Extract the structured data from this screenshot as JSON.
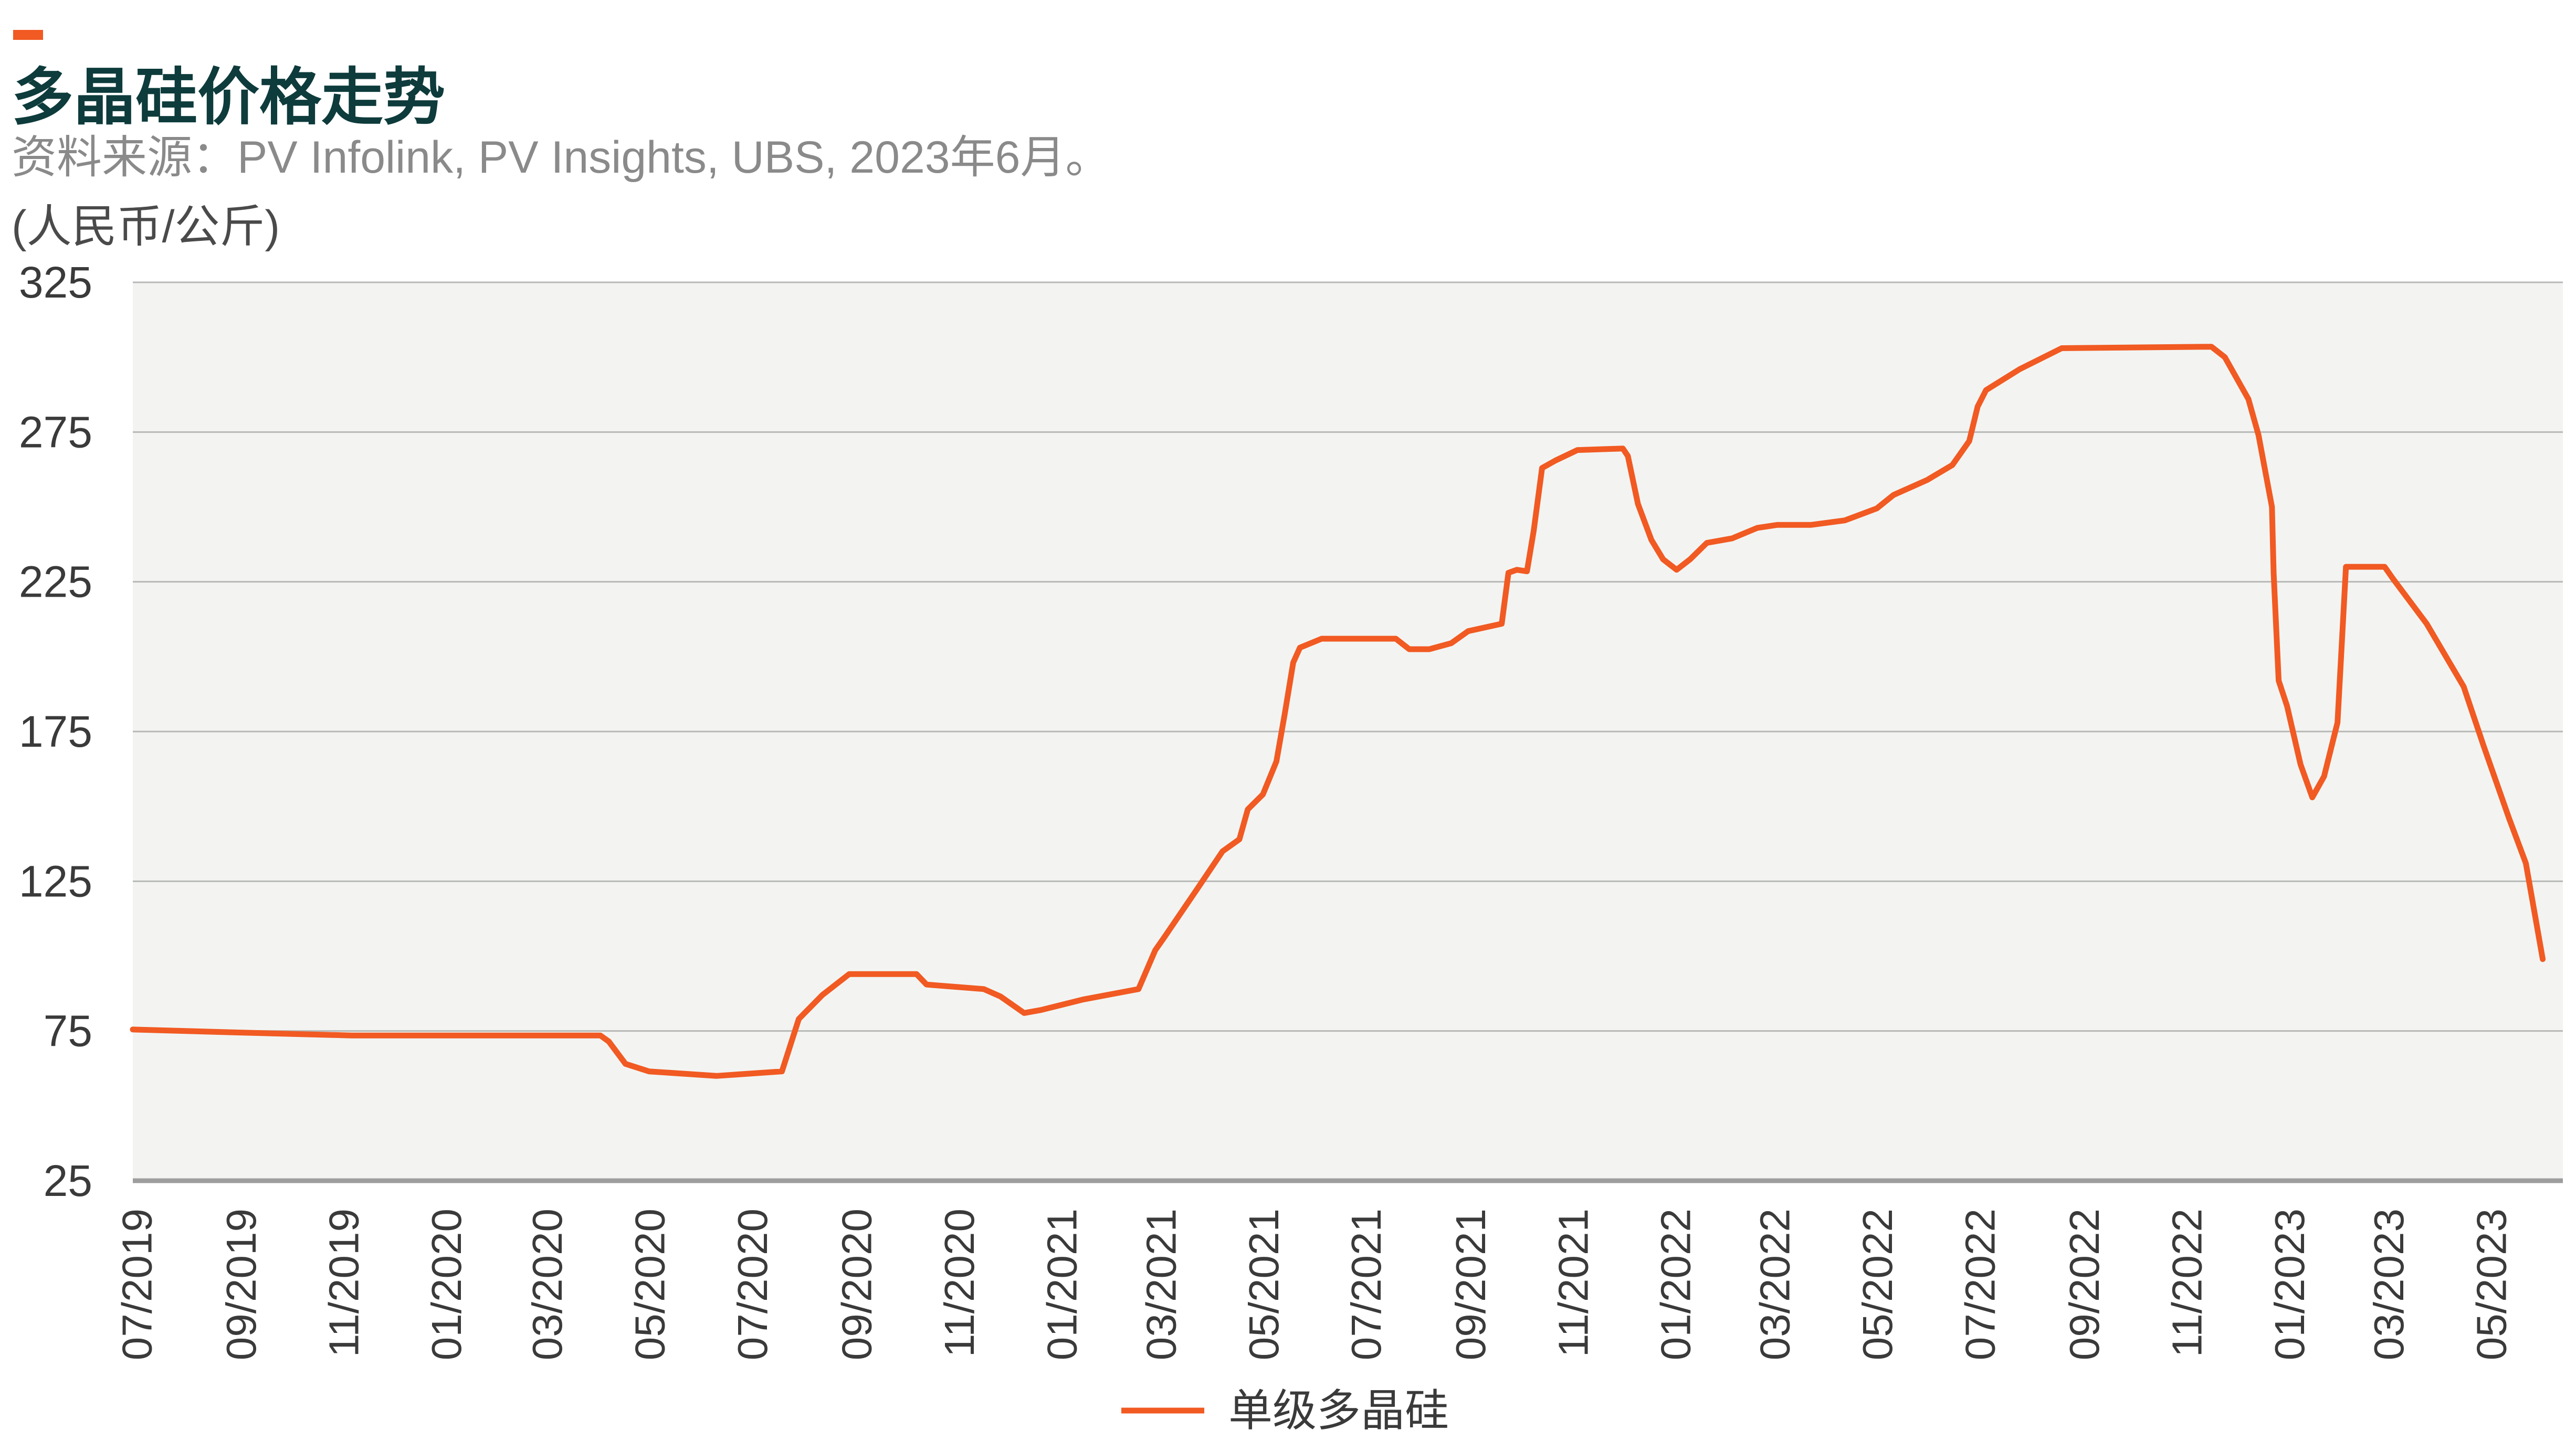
{
  "colors": {
    "line": "#f15a22",
    "accent_bar": "#f15a22",
    "title": "#0e3b3b",
    "subtitle": "#8a8a8a",
    "unit_label": "#4a4a4a",
    "plot_background": "#f3f4f2",
    "gridline": "#b7b9b7",
    "baseline": "#9d9d9d",
    "tick_label": "#3a3a3a"
  },
  "chart_data": {
    "type": "line",
    "title": "多晶硅价格走势",
    "subtitle": "资料来源：PV Infolink, PV Insights, UBS, 2023年6月。",
    "ylabel": "(人民币/公斤)",
    "xlabel": "",
    "ylim": [
      25,
      325
    ],
    "yticks": [
      325,
      275,
      225,
      175,
      125,
      75,
      25
    ],
    "xlim": [
      "2019-07-01",
      "2023-06-15"
    ],
    "xticks": [
      "07/2019",
      "09/2019",
      "11/2019",
      "01/2020",
      "03/2020",
      "05/2020",
      "07/2020",
      "09/2020",
      "11/2020",
      "01/2021",
      "03/2021",
      "05/2021",
      "07/2021",
      "09/2021",
      "11/2021",
      "01/2022",
      "03/2022",
      "05/2022",
      "07/2022",
      "09/2022",
      "11/2022",
      "01/2023",
      "03/2023",
      "05/2023"
    ],
    "grid": true,
    "legend_position": "bottom-center",
    "series": [
      {
        "name": "单级多晶硅",
        "dates": [
          "2019-07-01",
          "2019-09-01",
          "2019-11-08",
          "2020-01-15",
          "2020-04-04",
          "2020-04-09",
          "2020-04-19",
          "2020-05-03",
          "2020-06-12",
          "2020-07-21",
          "2020-07-31",
          "2020-08-14",
          "2020-08-30",
          "2020-10-09",
          "2020-10-15",
          "2020-11-18",
          "2020-11-28",
          "2020-12-12",
          "2020-12-22",
          "2021-01-16",
          "2021-02-18",
          "2021-02-28",
          "2021-03-05",
          "2021-03-25",
          "2021-04-09",
          "2021-04-19",
          "2021-04-24",
          "2021-05-03",
          "2021-05-11",
          "2021-05-16",
          "2021-05-21",
          "2021-05-25",
          "2021-06-07",
          "2021-07-21",
          "2021-07-29",
          "2021-08-10",
          "2021-08-23",
          "2021-09-02",
          "2021-09-22",
          "2021-09-26",
          "2021-10-01",
          "2021-10-07",
          "2021-10-11",
          "2021-10-16",
          "2021-10-24",
          "2021-11-06",
          "2021-12-03",
          "2021-12-06",
          "2021-12-12",
          "2021-12-20",
          "2021-12-27",
          "2022-01-04",
          "2022-01-12",
          "2022-01-22",
          "2022-02-06",
          "2022-02-21",
          "2022-03-05",
          "2022-03-25",
          "2022-04-14",
          "2022-05-03",
          "2022-05-13",
          "2022-06-02",
          "2022-06-17",
          "2022-06-27",
          "2022-07-02",
          "2022-07-07",
          "2022-07-27",
          "2022-08-21",
          "2022-11-18",
          "2022-11-26",
          "2022-12-10",
          "2022-12-16",
          "2022-12-24",
          "2022-12-25",
          "2022-12-28",
          "2023-01-02",
          "2023-01-10",
          "2023-01-17",
          "2023-01-24",
          "2023-02-01",
          "2023-02-06",
          "2023-03-01",
          "2023-03-06",
          "2023-03-26",
          "2023-04-17",
          "2023-04-29",
          "2023-05-14",
          "2023-05-24",
          "2023-06-03"
        ],
        "values": [
          75.5,
          74.5,
          73.5,
          73.5,
          73.5,
          71.5,
          64,
          61.5,
          60,
          61.5,
          79,
          87,
          94,
          94,
          90.5,
          89,
          86.5,
          81,
          82,
          85.5,
          89,
          102,
          106,
          122.5,
          135,
          139,
          149,
          154,
          165,
          181,
          198,
          203,
          206,
          206,
          202.5,
          202.5,
          204.5,
          208.5,
          211,
          228,
          229,
          228.5,
          242,
          263,
          265.5,
          269,
          269.5,
          267,
          251,
          239,
          232.5,
          229,
          232.5,
          238,
          239.5,
          243,
          244,
          244,
          245.5,
          249.5,
          254,
          259,
          264,
          272,
          283.5,
          289,
          296,
          303,
          303.5,
          300,
          286,
          274,
          250,
          228,
          192,
          183.5,
          164,
          153,
          160,
          178,
          230,
          230,
          226,
          211,
          190,
          170,
          146,
          131,
          99
        ]
      }
    ]
  }
}
